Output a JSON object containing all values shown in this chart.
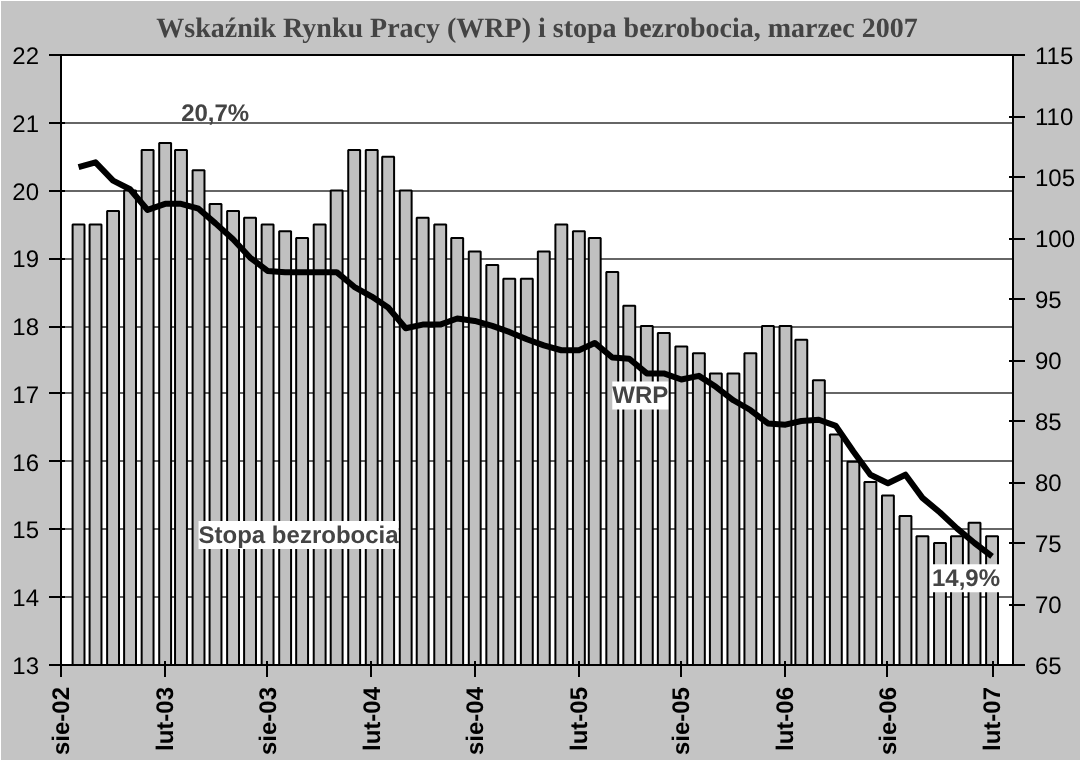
{
  "chart_data": {
    "type": "bar",
    "title": "Wskaźnik Rynku Pracy (WRP) i stopa bezrobocia, marzec 2007",
    "x": [
      "2002-09",
      "2002-10",
      "2002-11",
      "2002-12",
      "2003-01",
      "2003-02",
      "2003-03",
      "2003-04",
      "2003-05",
      "2003-06",
      "2003-07",
      "2003-08",
      "2003-09",
      "2003-10",
      "2003-11",
      "2003-12",
      "2004-01",
      "2004-02",
      "2004-03",
      "2004-04",
      "2004-05",
      "2004-06",
      "2004-07",
      "2004-08",
      "2004-09",
      "2004-10",
      "2004-11",
      "2004-12",
      "2005-01",
      "2005-02",
      "2005-03",
      "2005-04",
      "2005-05",
      "2005-06",
      "2005-07",
      "2005-08",
      "2005-09",
      "2005-10",
      "2005-11",
      "2005-12",
      "2006-01",
      "2006-02",
      "2006-03",
      "2006-04",
      "2006-05",
      "2006-06",
      "2006-07",
      "2006-08",
      "2006-09",
      "2006-10",
      "2006-11",
      "2006-12",
      "2007-01",
      "2007-02"
    ],
    "series": [
      {
        "name": "Stopa bezrobocia",
        "color": "#c0c0c0",
        "values": [
          19.5,
          19.5,
          19.7,
          20.0,
          20.6,
          20.7,
          20.6,
          20.3,
          19.8,
          19.7,
          19.6,
          19.5,
          19.4,
          19.3,
          19.5,
          20.0,
          20.6,
          20.6,
          20.5,
          20.0,
          19.6,
          19.5,
          19.3,
          19.1,
          18.9,
          18.7,
          18.7,
          19.1,
          19.5,
          19.4,
          19.3,
          18.8,
          18.3,
          18.0,
          17.9,
          17.7,
          17.6,
          17.3,
          17.3,
          17.6,
          18.0,
          18.0,
          17.8,
          17.2,
          16.4,
          16.0,
          15.7,
          15.5,
          15.2,
          14.9,
          14.8,
          14.9,
          15.1,
          14.9
        ]
      },
      {
        "name": "WRP",
        "type": "line",
        "axis": "y2",
        "color": "#000000",
        "values": [
          105.8,
          106.2,
          104.7,
          104.0,
          102.3,
          102.8,
          102.8,
          102.4,
          101.2,
          99.9,
          98.4,
          97.3,
          97.2,
          97.2,
          97.2,
          97.2,
          96.0,
          95.2,
          94.3,
          92.6,
          92.9,
          92.9,
          93.4,
          93.2,
          92.8,
          92.3,
          91.7,
          91.2,
          90.8,
          90.8,
          91.4,
          90.2,
          90.1,
          88.9,
          88.9,
          88.4,
          88.7,
          87.8,
          86.7,
          85.9,
          84.8,
          84.7,
          85.0,
          85.1,
          84.6,
          82.5,
          80.6,
          79.9,
          80.6,
          78.7,
          77.5,
          76.2,
          75.0,
          73.9
        ]
      }
    ],
    "xlim": [
      "2002-08",
      "2007-03-10"
    ],
    "xticks": [
      {
        "value": "2002-08",
        "label": "sie-02"
      },
      {
        "value": "2003-02",
        "label": "lut-03"
      },
      {
        "value": "2003-08",
        "label": "sie-03"
      },
      {
        "value": "2004-02",
        "label": "lut-04"
      },
      {
        "value": "2004-08",
        "label": "sie-04"
      },
      {
        "value": "2005-02",
        "label": "lut-05"
      },
      {
        "value": "2005-08",
        "label": "sie-05"
      },
      {
        "value": "2006-02",
        "label": "lut-06"
      },
      {
        "value": "2006-08",
        "label": "sie-06"
      },
      {
        "value": "2007-02",
        "label": "lut-07"
      }
    ],
    "ylim": [
      13,
      22
    ],
    "yticks": [
      13,
      14,
      15,
      16,
      17,
      18,
      19,
      20,
      21,
      22
    ],
    "y2lim": [
      65,
      115
    ],
    "y2ticks": [
      65,
      70,
      75,
      80,
      85,
      90,
      95,
      100,
      105,
      110,
      115
    ],
    "annotations": [
      {
        "text": "20,7%",
        "x": "2003-02",
        "y": 20.7
      },
      {
        "text": "14,9%",
        "x": "2007-02",
        "y": 14.9
      }
    ],
    "grid": "y"
  }
}
